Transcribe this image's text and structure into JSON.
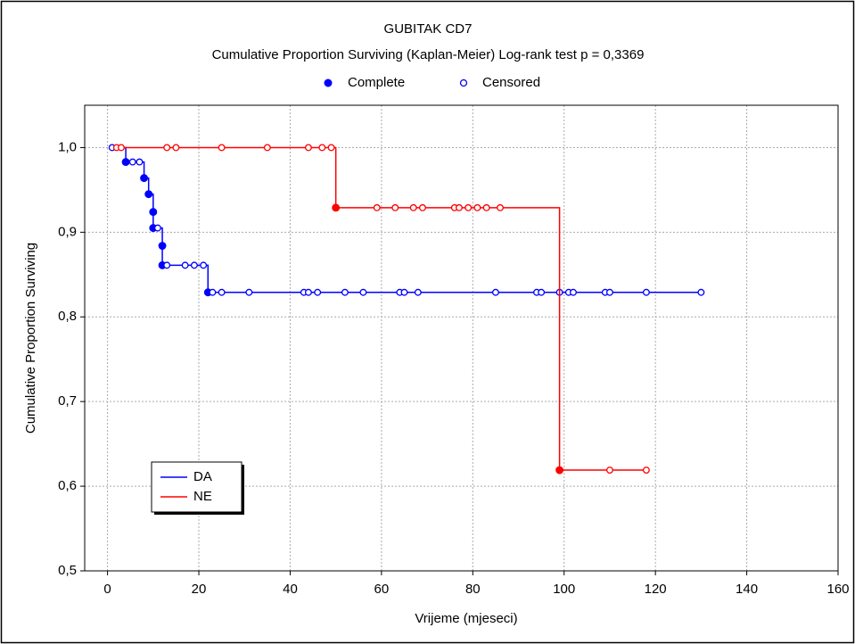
{
  "chart_data": {
    "type": "kaplan-meier",
    "title": "GUBITAK CD7",
    "subtitle": "Cumulative Proportion Surviving (Kaplan-Meier)  Log-rank test  p = 0,3369",
    "marker_legend": [
      "Complete",
      "Censored"
    ],
    "x_label": "Vrijeme (mjeseci)",
    "y_label": "Cumulative Proportion Surviving",
    "xlim": [
      -5,
      160
    ],
    "xticks": [
      0,
      20,
      40,
      60,
      80,
      100,
      120,
      140,
      160
    ],
    "ylim": [
      0.5,
      1.05
    ],
    "yticks": [
      {
        "value": 0.5,
        "label": "0,5"
      },
      {
        "value": 0.6,
        "label": "0,6"
      },
      {
        "value": 0.7,
        "label": "0,7"
      },
      {
        "value": 0.8,
        "label": "0,8"
      },
      {
        "value": 0.9,
        "label": "0,9"
      },
      {
        "value": 1.0,
        "label": "1,0"
      }
    ],
    "grid": true,
    "legend_position": "lower left",
    "series": [
      {
        "name": "DA",
        "color": "#0000ff",
        "x": [
          1,
          4,
          5.5,
          7,
          8,
          9,
          10,
          10,
          11,
          12,
          12,
          13,
          17,
          19,
          21,
          22,
          23,
          25,
          31,
          43,
          44,
          46,
          52,
          56,
          64,
          65,
          68,
          85,
          94,
          95,
          99,
          101,
          102,
          109,
          110,
          118,
          130
        ],
        "values": [
          1.0,
          0.983,
          0.983,
          0.983,
          0.964,
          0.945,
          0.924,
          0.905,
          0.905,
          0.884,
          0.861,
          0.861,
          0.861,
          0.861,
          0.861,
          0.829,
          0.829,
          0.829,
          0.829,
          0.829,
          0.829,
          0.829,
          0.829,
          0.829,
          0.829,
          0.829,
          0.829,
          0.829,
          0.829,
          0.829,
          0.829,
          0.829,
          0.829,
          0.829,
          0.829,
          0.829,
          0.829
        ],
        "censored": [
          true,
          false,
          true,
          true,
          false,
          false,
          false,
          false,
          true,
          false,
          false,
          true,
          true,
          true,
          true,
          false,
          true,
          true,
          true,
          true,
          true,
          true,
          true,
          true,
          true,
          true,
          true,
          true,
          true,
          true,
          true,
          true,
          true,
          true,
          true,
          true,
          true
        ]
      },
      {
        "name": "NE",
        "color": "#ff0000",
        "x": [
          2,
          3,
          13,
          15,
          25,
          35,
          44,
          47,
          49,
          50,
          59,
          63,
          67,
          69,
          76,
          77,
          79,
          81,
          83,
          86,
          99,
          110,
          118
        ],
        "values": [
          1.0,
          1.0,
          1.0,
          1.0,
          1.0,
          1.0,
          1.0,
          1.0,
          1.0,
          0.929,
          0.929,
          0.929,
          0.929,
          0.929,
          0.929,
          0.929,
          0.929,
          0.929,
          0.929,
          0.929,
          0.619,
          0.619,
          0.619
        ],
        "censored": [
          true,
          true,
          true,
          true,
          true,
          true,
          true,
          true,
          true,
          false,
          true,
          true,
          true,
          true,
          true,
          true,
          true,
          true,
          true,
          true,
          false,
          true,
          true
        ]
      }
    ]
  }
}
